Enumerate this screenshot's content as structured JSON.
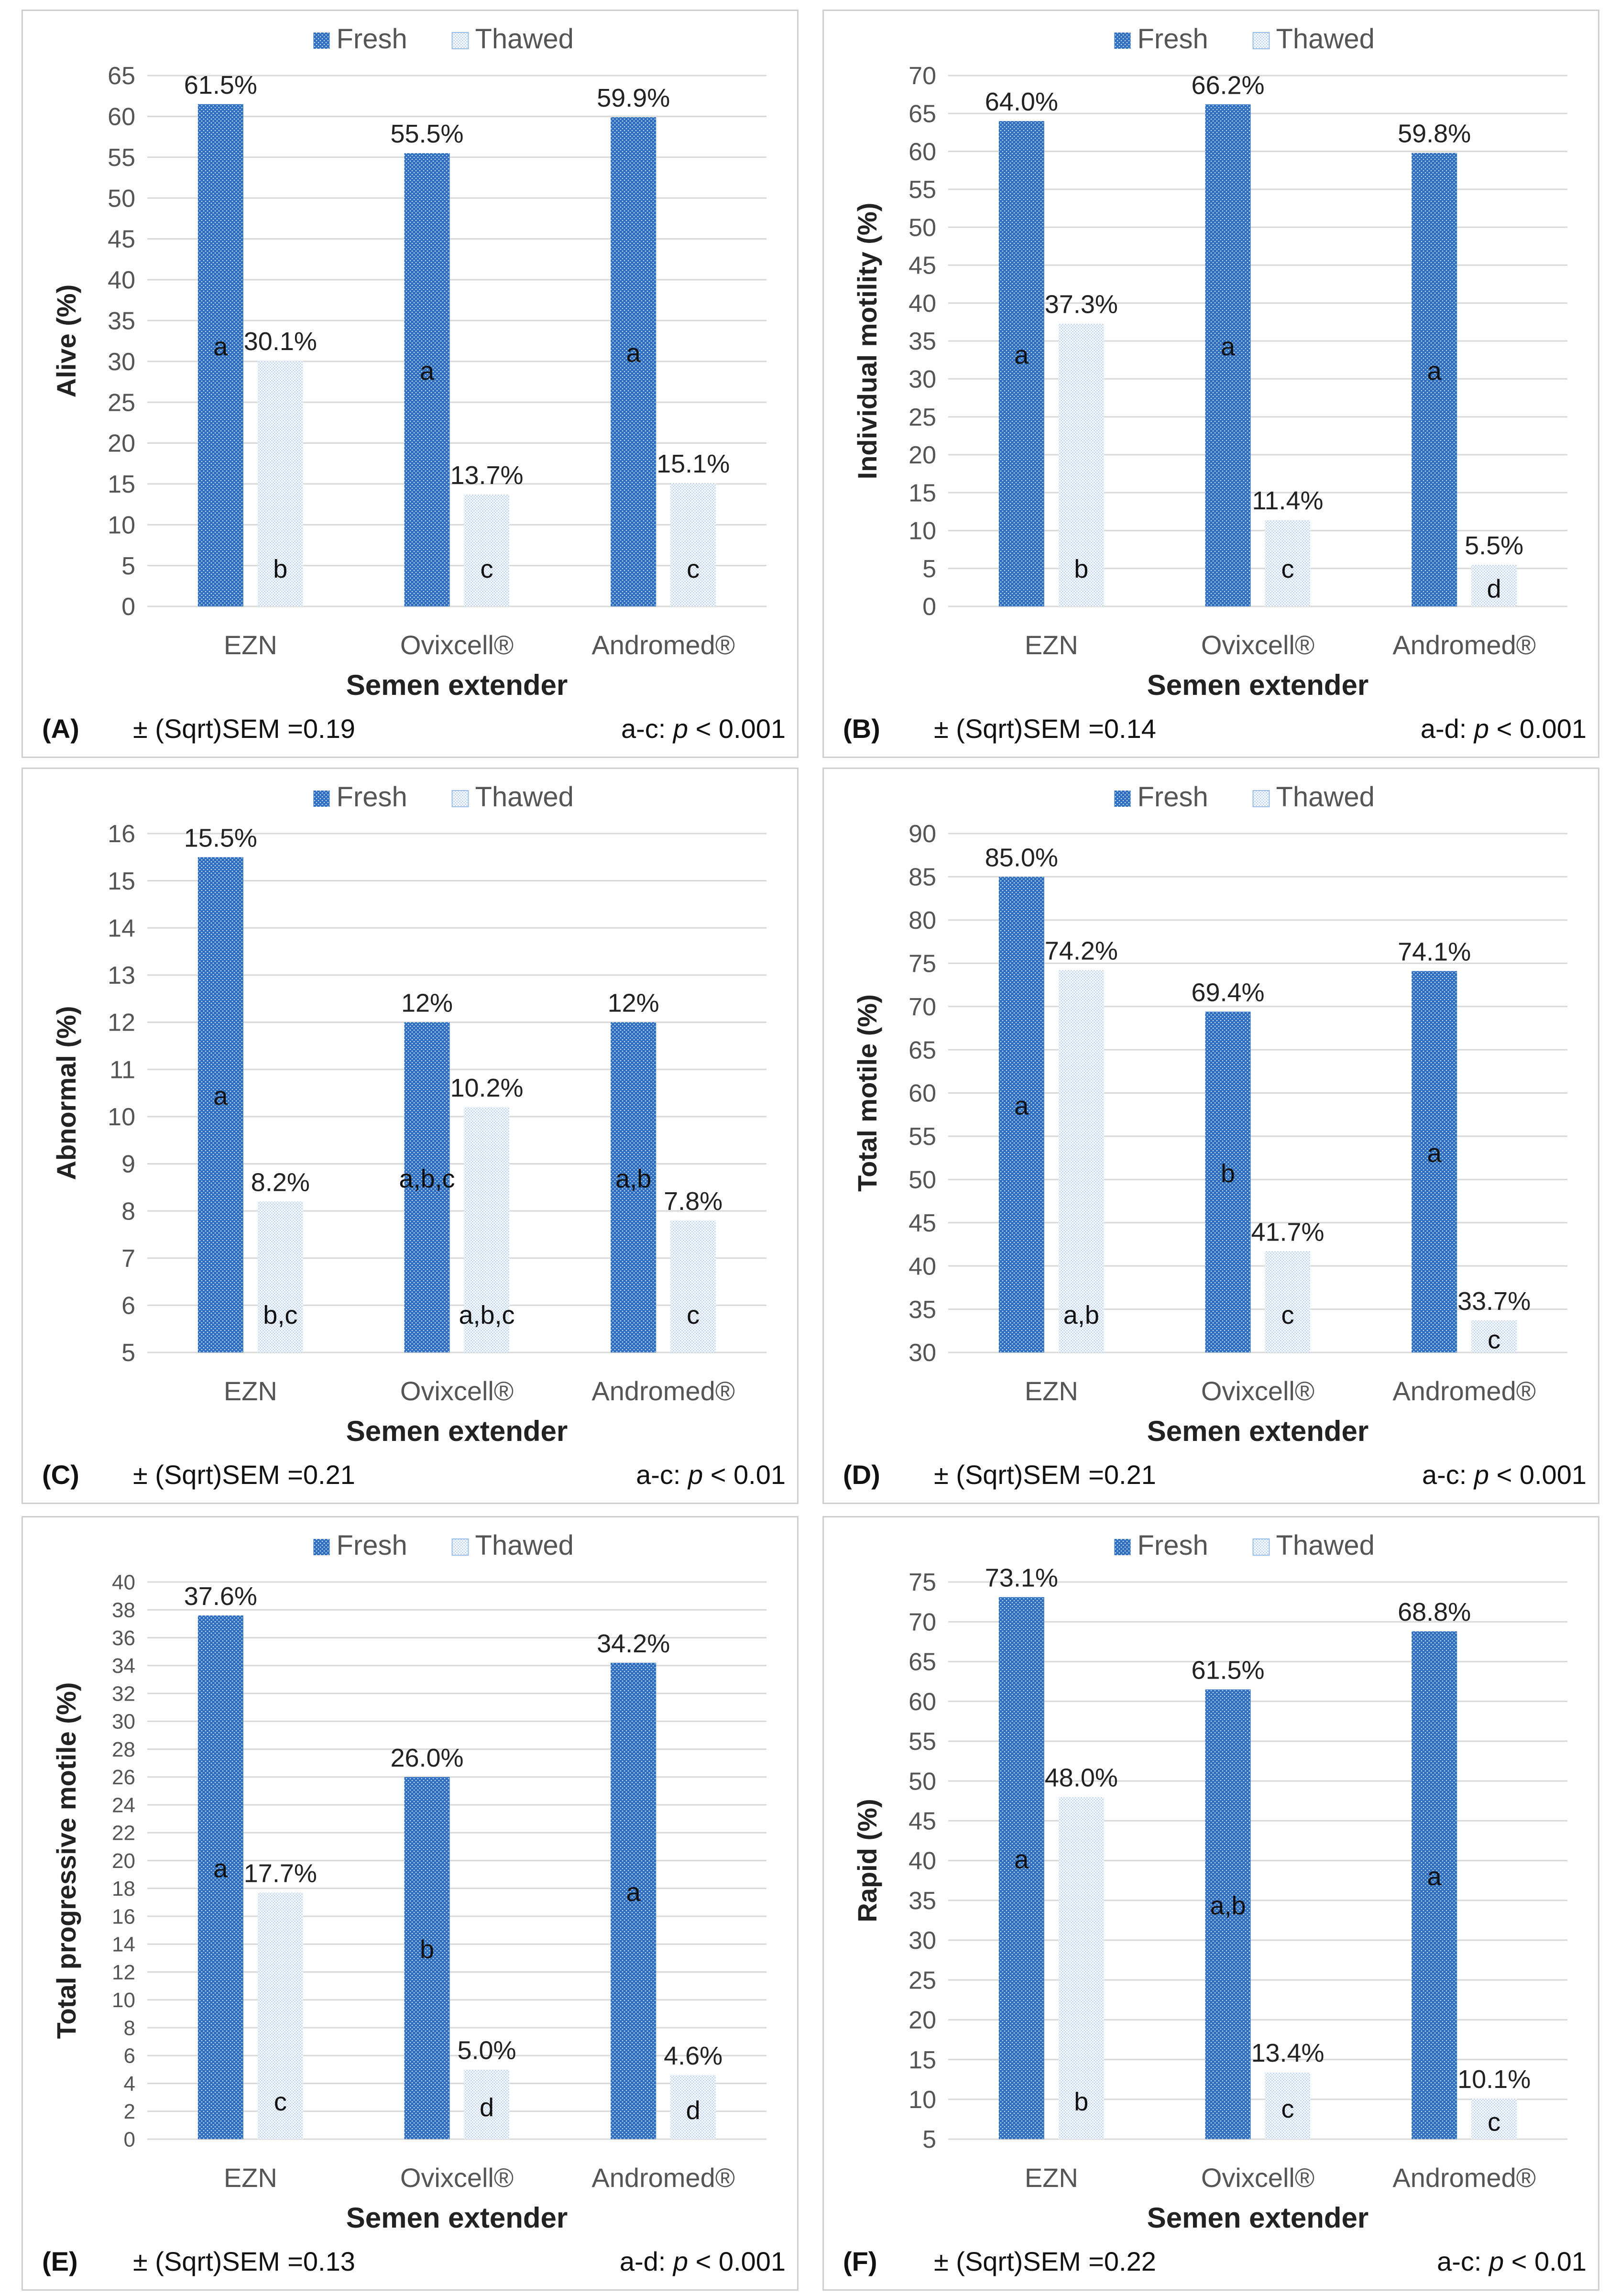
{
  "colors": {
    "fresh": "#2e6fc2",
    "thawed": "#9cbde6",
    "grid": "#d9d9d9",
    "text": "#222222",
    "axis_text": "#555555"
  },
  "chart_data": [
    {
      "panel": "(A)",
      "type": "bar",
      "ylabel": "Alive (%)",
      "xlabel": "Semen extender",
      "ylim": [
        0,
        65
      ],
      "ystep": 5,
      "yticks": [
        "0",
        "5",
        "10",
        "15",
        "20",
        "25",
        "30",
        "35",
        "40",
        "45",
        "50",
        "55",
        "60",
        "65"
      ],
      "categories": [
        "EZN",
        "Ovixcell®",
        "Andromed®"
      ],
      "series": [
        {
          "name": "Fresh",
          "values": [
            61.5,
            55.5,
            59.9
          ],
          "data_labels": [
            "61.5%",
            "55.5%",
            "59.9%"
          ],
          "letters": [
            "a",
            "a",
            "a"
          ]
        },
        {
          "name": "Thawed",
          "values": [
            30.1,
            13.7,
            15.1
          ],
          "data_labels": [
            "30.1%",
            "13.7%",
            "15.1%"
          ],
          "letters": [
            "b",
            "c",
            "c"
          ]
        }
      ],
      "sem_text": "± (Sqrt)SEM =0.19",
      "sig_prefix": "a-c: ",
      "sig_p": "p",
      "sig_suffix": " < 0.001"
    },
    {
      "panel": "(B)",
      "type": "bar",
      "ylabel": "Individual motility (%)",
      "xlabel": "Semen extender",
      "ylim": [
        0,
        70
      ],
      "ystep": 5,
      "yticks": [
        "0",
        "5",
        "10",
        "15",
        "20",
        "25",
        "30",
        "35",
        "40",
        "45",
        "50",
        "55",
        "60",
        "65",
        "70"
      ],
      "categories": [
        "EZN",
        "Ovixcell®",
        "Andromed®"
      ],
      "series": [
        {
          "name": "Fresh",
          "values": [
            64.0,
            66.2,
            59.8
          ],
          "data_labels": [
            "64.0%",
            "66.2%",
            "59.8%"
          ],
          "letters": [
            "a",
            "a",
            "a"
          ]
        },
        {
          "name": "Thawed",
          "values": [
            37.3,
            11.4,
            5.5
          ],
          "data_labels": [
            "37.3%",
            "11.4%",
            "5.5%"
          ],
          "letters": [
            "b",
            "c",
            "d"
          ]
        }
      ],
      "sem_text": "± (Sqrt)SEM =0.14",
      "sig_prefix": "a-d: ",
      "sig_p": "p",
      "sig_suffix": " < 0.001"
    },
    {
      "panel": "(C)",
      "type": "bar",
      "ylabel": "Abnormal (%)",
      "xlabel": "Semen extender",
      "ylim": [
        5,
        16
      ],
      "ystep": 1,
      "yticks": [
        "5",
        "6",
        "7",
        "8",
        "9",
        "10",
        "11",
        "12",
        "13",
        "14",
        "15",
        "16"
      ],
      "categories": [
        "EZN",
        "Ovixcell®",
        "Andromed®"
      ],
      "series": [
        {
          "name": "Fresh",
          "values": [
            15.5,
            12,
            12
          ],
          "data_labels": [
            "15.5%",
            "12%",
            "12%"
          ],
          "letters": [
            "a",
            "a,b,c",
            "a,b"
          ]
        },
        {
          "name": "Thawed",
          "values": [
            8.2,
            10.2,
            7.8
          ],
          "data_labels": [
            "8.2%",
            "10.2%",
            "7.8%"
          ],
          "letters": [
            "b,c",
            "a,b,c",
            "c"
          ]
        }
      ],
      "sem_text": "± (Sqrt)SEM =0.21",
      "sig_prefix": "a-c: ",
      "sig_p": "p",
      "sig_suffix": " < 0.01"
    },
    {
      "panel": "(D)",
      "type": "bar",
      "ylabel": "Total motile (%)",
      "xlabel": "Semen extender",
      "ylim": [
        30,
        90
      ],
      "ystep": 5,
      "yticks": [
        "30",
        "35",
        "40",
        "45",
        "50",
        "55",
        "60",
        "65",
        "70",
        "75",
        "80",
        "85",
        "90"
      ],
      "categories": [
        "EZN",
        "Ovixcell®",
        "Andromed®"
      ],
      "series": [
        {
          "name": "Fresh",
          "values": [
            85.0,
            69.4,
            74.1
          ],
          "data_labels": [
            "85.0%",
            "69.4%",
            "74.1%"
          ],
          "letters": [
            "a",
            "b",
            "a"
          ]
        },
        {
          "name": "Thawed",
          "values": [
            74.2,
            41.7,
            33.7
          ],
          "data_labels": [
            "74.2%",
            "41.7%",
            "33.7%"
          ],
          "letters": [
            "a,b",
            "c",
            "c"
          ]
        }
      ],
      "sem_text": "± (Sqrt)SEM =0.21",
      "sig_prefix": "a-c: ",
      "sig_p": "p",
      "sig_suffix": " < 0.001"
    },
    {
      "panel": "(E)",
      "type": "bar",
      "ylabel": "Total  progressive motile  (%)",
      "xlabel": "Semen extender",
      "ylim": [
        0,
        40
      ],
      "ystep": 2,
      "yticks": [
        "0",
        "2",
        "4",
        "6",
        "8",
        "10",
        "12",
        "14",
        "16",
        "18",
        "20",
        "22",
        "24",
        "26",
        "28",
        "30",
        "32",
        "34",
        "36",
        "38",
        "40"
      ],
      "categories": [
        "EZN",
        "Ovixcell®",
        "Andromed®"
      ],
      "series": [
        {
          "name": "Fresh",
          "values": [
            37.6,
            26.0,
            34.2
          ],
          "data_labels": [
            "37.6%",
            "26.0%",
            "34.2%"
          ],
          "letters": [
            "a",
            "b",
            "a"
          ]
        },
        {
          "name": "Thawed",
          "values": [
            17.7,
            5.0,
            4.6
          ],
          "data_labels": [
            "17.7%",
            "5.0%",
            "4.6%"
          ],
          "letters": [
            "c",
            "d",
            "d"
          ]
        }
      ],
      "sem_text": "± (Sqrt)SEM =0.13",
      "sig_prefix": "a-d: ",
      "sig_p": "p",
      "sig_suffix": " < 0.001"
    },
    {
      "panel": "(F)",
      "type": "bar",
      "ylabel": "Rapid  (%)",
      "xlabel": "Semen extender",
      "ylim": [
        5,
        75
      ],
      "ystep": 5,
      "yticks": [
        "5",
        "10",
        "15",
        "20",
        "25",
        "30",
        "35",
        "40",
        "45",
        "50",
        "55",
        "60",
        "65",
        "70",
        "75"
      ],
      "categories": [
        "EZN",
        "Ovixcell®",
        "Andromed®"
      ],
      "series": [
        {
          "name": "Fresh",
          "values": [
            73.1,
            61.5,
            68.8
          ],
          "data_labels": [
            "73.1%",
            "61.5%",
            "68.8%"
          ],
          "letters": [
            "a",
            "a,b",
            "a"
          ]
        },
        {
          "name": "Thawed",
          "values": [
            48.0,
            13.4,
            10.1
          ],
          "data_labels": [
            "48.0%",
            "13.4%",
            "10.1%"
          ],
          "letters": [
            "b",
            "c",
            "c"
          ]
        }
      ],
      "sem_text": "± (Sqrt)SEM =0.22",
      "sig_prefix": "a-c: ",
      "sig_p": "p",
      "sig_suffix": " < 0.01"
    }
  ]
}
